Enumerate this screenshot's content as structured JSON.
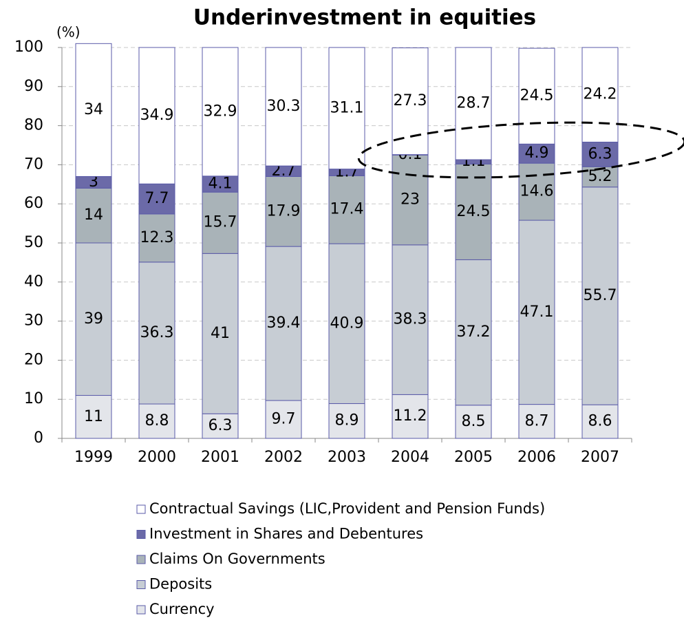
{
  "chart_data": {
    "type": "stacked_bar",
    "title": "Underinvestment in equities",
    "y_label": "(%)",
    "categories": [
      "1999",
      "2000",
      "2001",
      "2002",
      "2003",
      "2004",
      "2005",
      "2006",
      "2007"
    ],
    "series": [
      {
        "name": "Currency",
        "color": "#e3e5ea",
        "values": [
          11,
          8.8,
          6.3,
          9.7,
          8.9,
          11.2,
          8.5,
          8.7,
          8.6
        ]
      },
      {
        "name": "Deposits",
        "color": "#c7cdd4",
        "values": [
          39,
          36.3,
          41,
          39.4,
          40.9,
          38.3,
          37.2,
          47.1,
          55.7
        ]
      },
      {
        "name": "Claims On Governments",
        "color": "#a9b3b8",
        "values": [
          14,
          12.3,
          15.7,
          17.9,
          17.4,
          23,
          24.5,
          14.6,
          5.2
        ]
      },
      {
        "name": "Investment in Shares and Debentures",
        "color": "#6b6aa8",
        "values": [
          3,
          7.7,
          4.1,
          2.7,
          1.7,
          0.1,
          1.1,
          4.9,
          6.3
        ]
      },
      {
        "name": "Contractual Savings (LIC,Provident and Pension Funds)",
        "color": "#ffffff",
        "values": [
          34,
          34.9,
          32.9,
          30.3,
          31.1,
          27.3,
          28.7,
          24.5,
          24.2
        ]
      }
    ],
    "ylim": [
      0,
      100
    ],
    "yticks": [
      0,
      10,
      20,
      30,
      40,
      50,
      60,
      70,
      80,
      90,
      100
    ],
    "grid": true
  }
}
